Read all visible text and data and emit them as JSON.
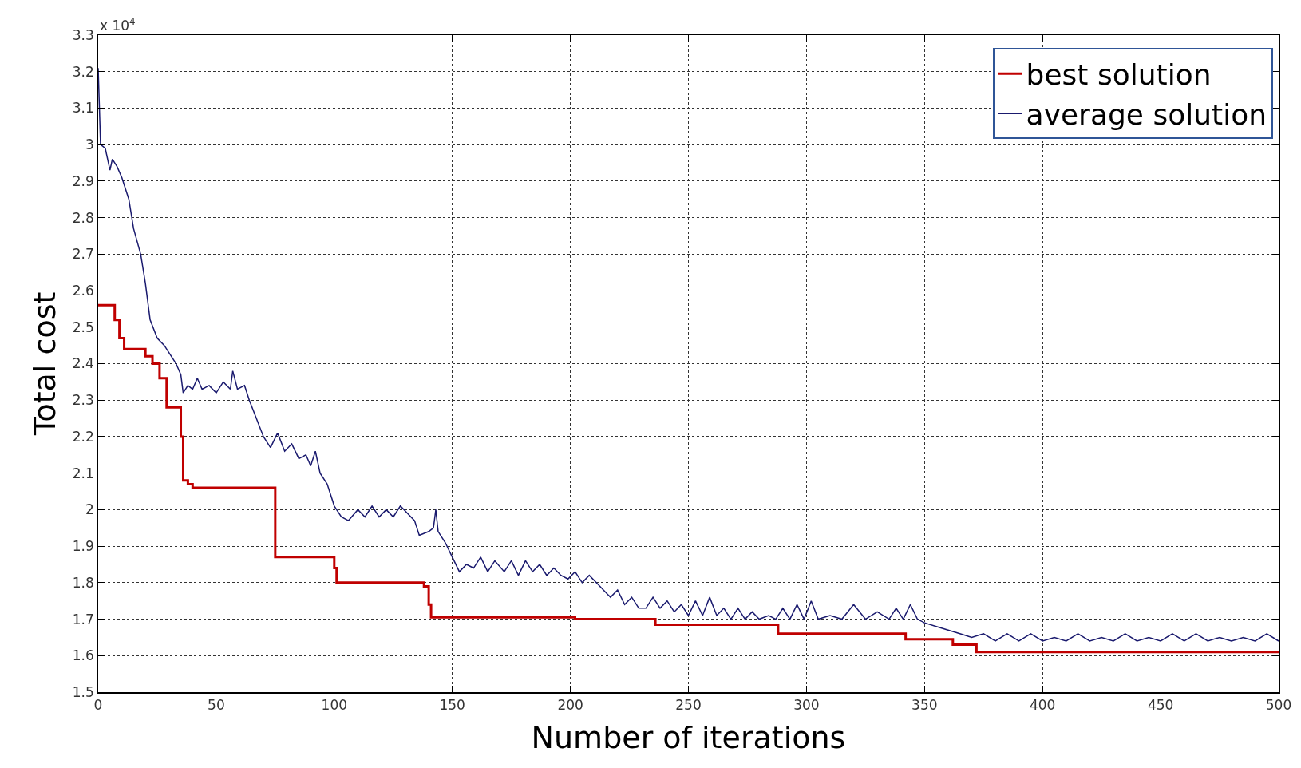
{
  "chart_data": {
    "type": "line",
    "xlabel": "Number of iterations",
    "ylabel": "Total cost",
    "annotations": [
      "x 10$^{4}$"
    ],
    "xlim": [
      0,
      500
    ],
    "xticks": [
      0,
      50,
      100,
      150,
      200,
      250,
      300,
      350,
      400,
      450,
      500
    ],
    "ylim": [
      1.5,
      3.3
    ],
    "yticks": [
      1.5,
      1.6,
      1.7,
      1.8,
      1.9,
      2,
      2.1,
      2.2,
      2.3,
      2.4,
      2.5,
      2.6,
      2.7,
      2.8,
      2.9,
      3,
      3.1,
      3.2,
      3.3
    ],
    "grid": true,
    "legend": "top right",
    "line_style": "solid",
    "series": [
      {
        "name": "best solution",
        "type": "step",
        "color": "#c00000",
        "x": [
          0,
          7,
          9,
          11,
          20,
          23,
          26,
          29,
          35,
          36,
          38,
          40,
          75,
          100,
          101,
          138,
          140,
          141,
          202,
          236,
          288,
          342,
          362,
          372,
          500
        ],
        "values": [
          2.56,
          2.52,
          2.47,
          2.44,
          2.42,
          2.4,
          2.36,
          2.28,
          2.2,
          2.08,
          2.07,
          2.06,
          1.87,
          1.84,
          1.8,
          1.79,
          1.74,
          1.705,
          1.7,
          1.685,
          1.66,
          1.645,
          1.63,
          1.61,
          1.61
        ]
      },
      {
        "name": "average solution",
        "color": "#1a1a6e",
        "x": [
          0,
          1,
          3,
          5,
          6,
          8,
          10,
          13,
          15,
          18,
          20,
          22,
          25,
          28,
          31,
          33,
          35,
          36,
          38,
          40,
          42,
          44,
          47,
          50,
          53,
          56,
          57,
          59,
          62,
          64,
          67,
          70,
          73,
          76,
          79,
          82,
          85,
          88,
          90,
          92,
          94,
          97,
          100,
          103,
          106,
          110,
          113,
          116,
          119,
          122,
          125,
          128,
          131,
          134,
          136,
          140,
          142,
          143,
          144,
          147,
          150,
          153,
          156,
          159,
          162,
          165,
          168,
          172,
          175,
          178,
          181,
          184,
          187,
          190,
          193,
          196,
          199,
          202,
          205,
          208,
          211,
          214,
          217,
          220,
          223,
          226,
          229,
          232,
          235,
          238,
          241,
          244,
          247,
          250,
          253,
          256,
          259,
          262,
          265,
          268,
          271,
          274,
          277,
          280,
          284,
          287,
          290,
          293,
          296,
          299,
          302,
          305,
          310,
          315,
          320,
          325,
          330,
          335,
          338,
          341,
          344,
          347,
          350,
          355,
          360,
          365,
          370,
          375,
          380,
          385,
          390,
          395,
          400,
          405,
          410,
          415,
          420,
          425,
          430,
          435,
          440,
          445,
          450,
          455,
          460,
          465,
          470,
          475,
          480,
          485,
          490,
          495,
          500
        ],
        "values": [
          3.21,
          3.0,
          2.99,
          2.93,
          2.96,
          2.94,
          2.91,
          2.85,
          2.77,
          2.7,
          2.62,
          2.52,
          2.47,
          2.45,
          2.42,
          2.4,
          2.37,
          2.32,
          2.34,
          2.33,
          2.36,
          2.33,
          2.34,
          2.32,
          2.35,
          2.33,
          2.38,
          2.33,
          2.34,
          2.3,
          2.25,
          2.2,
          2.17,
          2.21,
          2.16,
          2.18,
          2.14,
          2.15,
          2.12,
          2.16,
          2.1,
          2.07,
          2.01,
          1.98,
          1.97,
          2.0,
          1.98,
          2.01,
          1.98,
          2.0,
          1.98,
          2.01,
          1.99,
          1.97,
          1.93,
          1.94,
          1.95,
          2.0,
          1.94,
          1.91,
          1.87,
          1.83,
          1.85,
          1.84,
          1.87,
          1.83,
          1.86,
          1.83,
          1.86,
          1.82,
          1.86,
          1.83,
          1.85,
          1.82,
          1.84,
          1.82,
          1.81,
          1.83,
          1.8,
          1.82,
          1.8,
          1.78,
          1.76,
          1.78,
          1.74,
          1.76,
          1.73,
          1.73,
          1.76,
          1.73,
          1.75,
          1.72,
          1.74,
          1.71,
          1.75,
          1.71,
          1.76,
          1.71,
          1.73,
          1.7,
          1.73,
          1.7,
          1.72,
          1.7,
          1.71,
          1.7,
          1.73,
          1.7,
          1.74,
          1.7,
          1.75,
          1.7,
          1.71,
          1.7,
          1.74,
          1.7,
          1.72,
          1.7,
          1.73,
          1.7,
          1.74,
          1.7,
          1.69,
          1.68,
          1.67,
          1.66,
          1.65,
          1.66,
          1.64,
          1.66,
          1.64,
          1.66,
          1.64,
          1.65,
          1.64,
          1.66,
          1.64,
          1.65,
          1.64,
          1.66,
          1.64,
          1.65,
          1.64,
          1.66,
          1.64,
          1.66,
          1.64,
          1.65,
          1.64,
          1.65,
          1.64,
          1.66,
          1.64
        ]
      }
    ]
  }
}
